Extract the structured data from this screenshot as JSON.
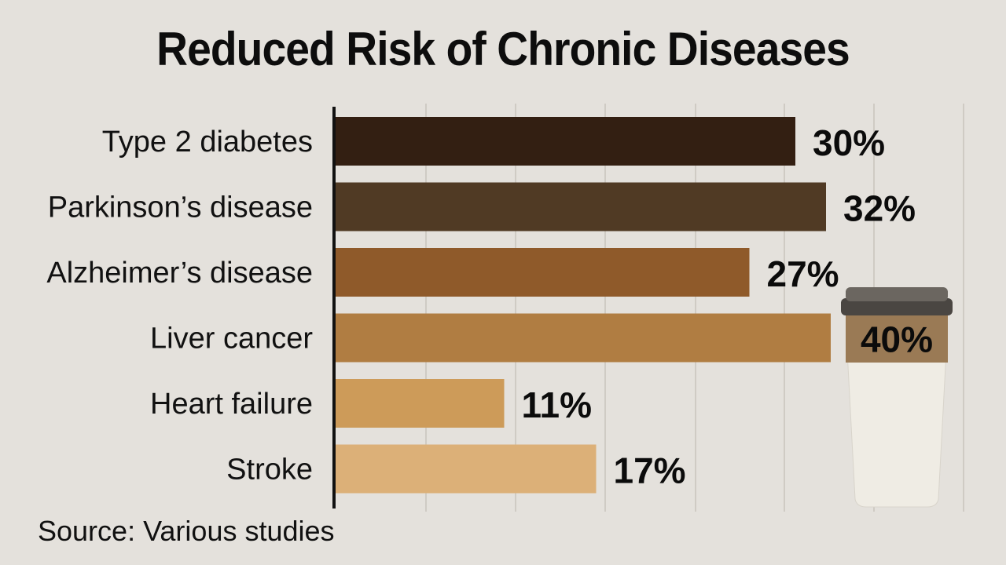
{
  "chart_data": {
    "type": "bar",
    "orientation": "horizontal",
    "title": "Reduced Risk of Chronic Diseases",
    "xlabel": "",
    "ylabel": "",
    "categories": [
      "Type 2 diabetes",
      "Parkinson’s disease",
      "Alzheimer’s disease",
      "Liver cancer",
      "Heart failure",
      "Stroke"
    ],
    "values": [
      30,
      32,
      27,
      40,
      11,
      17
    ],
    "value_labels": [
      "30%",
      "32%",
      "27%",
      "40%",
      "11%",
      "17%"
    ],
    "bar_colors": [
      "#331f12",
      "#503a24",
      "#8f5a2a",
      "#b07d42",
      "#cd9b59",
      "#dcb078"
    ],
    "grid": true,
    "legend": "none",
    "source": "Source: Various studies",
    "highlight": {
      "category": "Liver cancer",
      "label_on": "coffee-cup",
      "cup_band_color": "#9a7a55"
    }
  }
}
